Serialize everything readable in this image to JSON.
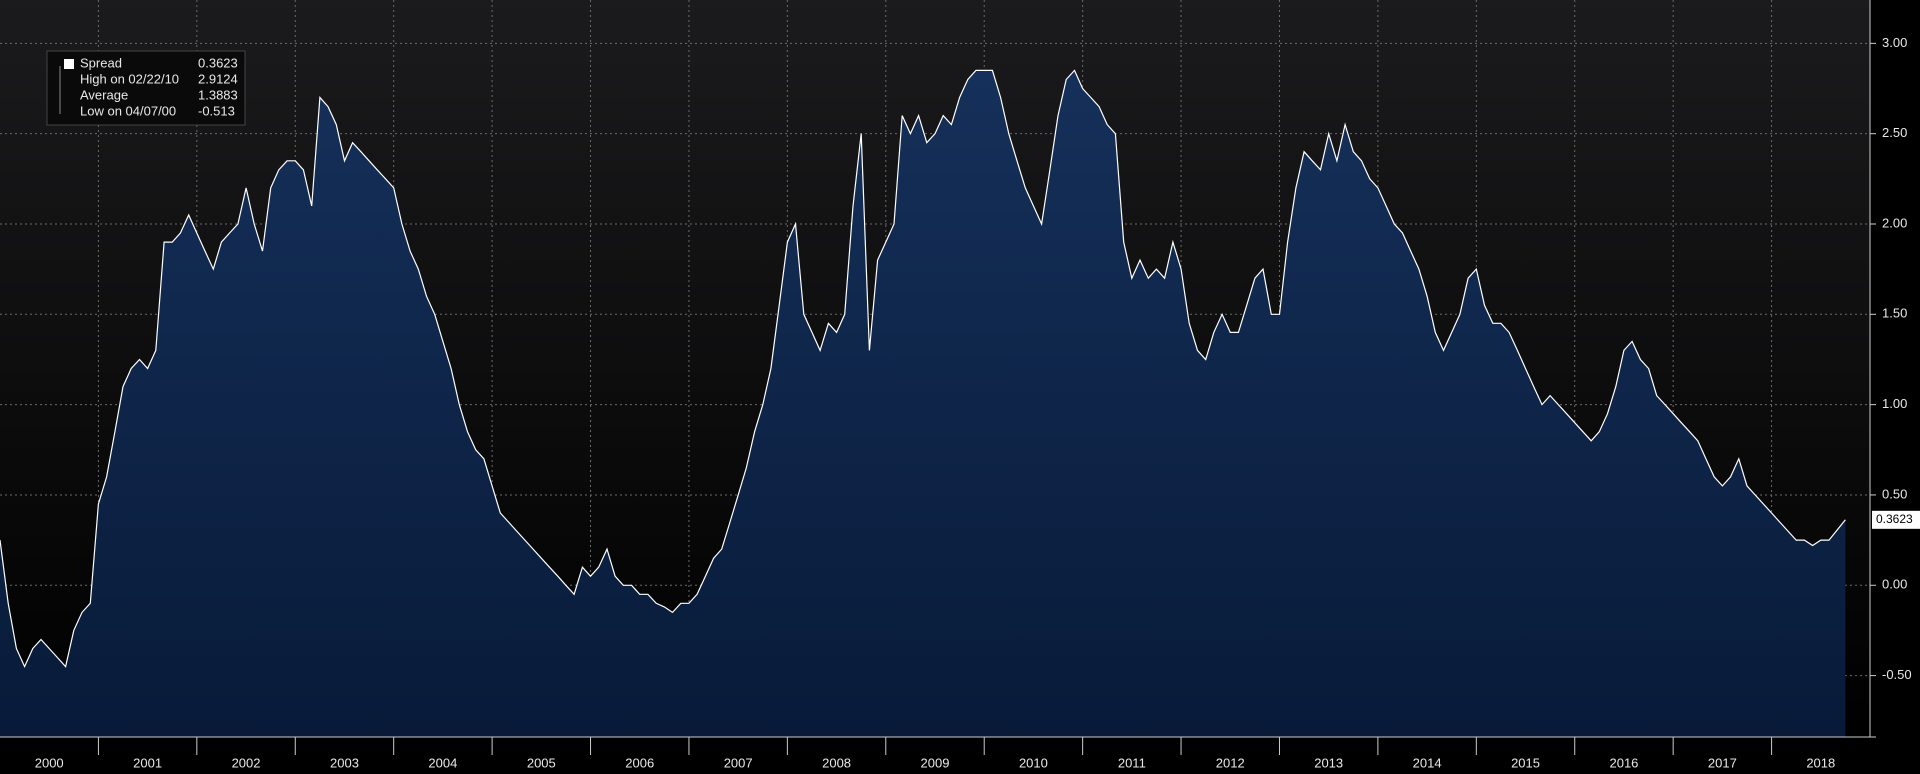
{
  "chart_data": {
    "type": "area",
    "x": [
      2000,
      2000.083,
      2000.167,
      2000.25,
      2000.333,
      2000.417,
      2000.5,
      2000.583,
      2000.667,
      2000.75,
      2000.833,
      2000.917,
      2001,
      2001.083,
      2001.167,
      2001.25,
      2001.333,
      2001.417,
      2001.5,
      2001.583,
      2001.667,
      2001.75,
      2001.833,
      2001.917,
      2002,
      2002.083,
      2002.167,
      2002.25,
      2002.333,
      2002.417,
      2002.5,
      2002.583,
      2002.667,
      2002.75,
      2002.833,
      2002.917,
      2003,
      2003.083,
      2003.167,
      2003.25,
      2003.333,
      2003.417,
      2003.5,
      2003.583,
      2003.667,
      2003.75,
      2003.833,
      2003.917,
      2004,
      2004.083,
      2004.167,
      2004.25,
      2004.333,
      2004.417,
      2004.5,
      2004.583,
      2004.667,
      2004.75,
      2004.833,
      2004.917,
      2005,
      2005.083,
      2005.167,
      2005.25,
      2005.333,
      2005.417,
      2005.5,
      2005.583,
      2005.667,
      2005.75,
      2005.833,
      2005.917,
      2006,
      2006.083,
      2006.167,
      2006.25,
      2006.333,
      2006.417,
      2006.5,
      2006.583,
      2006.667,
      2006.75,
      2006.833,
      2006.917,
      2007,
      2007.083,
      2007.167,
      2007.25,
      2007.333,
      2007.417,
      2007.5,
      2007.583,
      2007.667,
      2007.75,
      2007.833,
      2007.917,
      2008,
      2008.083,
      2008.167,
      2008.25,
      2008.333,
      2008.417,
      2008.5,
      2008.583,
      2008.667,
      2008.75,
      2008.833,
      2008.917,
      2009,
      2009.083,
      2009.167,
      2009.25,
      2009.333,
      2009.417,
      2009.5,
      2009.583,
      2009.667,
      2009.75,
      2009.833,
      2009.917,
      2010,
      2010.083,
      2010.167,
      2010.25,
      2010.333,
      2010.417,
      2010.5,
      2010.583,
      2010.667,
      2010.75,
      2010.833,
      2010.917,
      2011,
      2011.083,
      2011.167,
      2011.25,
      2011.333,
      2011.417,
      2011.5,
      2011.583,
      2011.667,
      2011.75,
      2011.833,
      2011.917,
      2012,
      2012.083,
      2012.167,
      2012.25,
      2012.333,
      2012.417,
      2012.5,
      2012.583,
      2012.667,
      2012.75,
      2012.833,
      2012.917,
      2013,
      2013.083,
      2013.167,
      2013.25,
      2013.333,
      2013.417,
      2013.5,
      2013.583,
      2013.667,
      2013.75,
      2013.833,
      2013.917,
      2014,
      2014.083,
      2014.167,
      2014.25,
      2014.333,
      2014.417,
      2014.5,
      2014.583,
      2014.667,
      2014.75,
      2014.833,
      2014.917,
      2015,
      2015.083,
      2015.167,
      2015.25,
      2015.333,
      2015.417,
      2015.5,
      2015.583,
      2015.667,
      2015.75,
      2015.833,
      2015.917,
      2016,
      2016.083,
      2016.167,
      2016.25,
      2016.333,
      2016.417,
      2016.5,
      2016.583,
      2016.667,
      2016.75,
      2016.833,
      2016.917,
      2017,
      2017.083,
      2017.167,
      2017.25,
      2017.333,
      2017.417,
      2017.5,
      2017.583,
      2017.667,
      2017.75,
      2017.833,
      2017.917,
      2018,
      2018.083,
      2018.167,
      2018.25,
      2018.333,
      2018.417,
      2018.5,
      2018.583,
      2018.75
    ],
    "series": [
      {
        "name": "Spread",
        "color": "#ffffff",
        "fill": "#13294b",
        "values": [
          0.25,
          -0.1,
          -0.35,
          -0.45,
          -0.35,
          -0.3,
          -0.35,
          -0.4,
          -0.45,
          -0.25,
          -0.15,
          -0.1,
          0.45,
          0.6,
          0.85,
          1.1,
          1.2,
          1.25,
          1.2,
          1.3,
          1.9,
          1.9,
          1.95,
          2.05,
          1.95,
          1.85,
          1.75,
          1.9,
          1.95,
          2.0,
          2.2,
          2.0,
          1.85,
          2.2,
          2.3,
          2.35,
          2.35,
          2.3,
          2.1,
          2.7,
          2.65,
          2.55,
          2.35,
          2.45,
          2.4,
          2.35,
          2.3,
          2.25,
          2.2,
          2.0,
          1.85,
          1.75,
          1.6,
          1.5,
          1.35,
          1.2,
          1.0,
          0.85,
          0.75,
          0.7,
          0.55,
          0.4,
          0.35,
          0.3,
          0.25,
          0.2,
          0.15,
          0.1,
          0.05,
          0.0,
          -0.05,
          0.1,
          0.05,
          0.1,
          0.2,
          0.05,
          0.0,
          0.0,
          -0.05,
          -0.05,
          -0.1,
          -0.12,
          -0.15,
          -0.1,
          -0.1,
          -0.05,
          0.05,
          0.15,
          0.2,
          0.35,
          0.5,
          0.65,
          0.85,
          1.0,
          1.2,
          1.55,
          1.9,
          2.0,
          1.5,
          1.4,
          1.3,
          1.45,
          1.4,
          1.5,
          2.1,
          2.5,
          1.3,
          1.8,
          1.9,
          2.0,
          2.6,
          2.5,
          2.6,
          2.45,
          2.5,
          2.6,
          2.55,
          2.7,
          2.8,
          2.85,
          2.85,
          2.85,
          2.7,
          2.5,
          2.35,
          2.2,
          2.1,
          2.0,
          2.3,
          2.6,
          2.8,
          2.85,
          2.75,
          2.7,
          2.65,
          2.55,
          2.5,
          1.9,
          1.7,
          1.8,
          1.7,
          1.75,
          1.7,
          1.9,
          1.75,
          1.45,
          1.3,
          1.25,
          1.4,
          1.5,
          1.4,
          1.4,
          1.55,
          1.7,
          1.75,
          1.5,
          1.5,
          1.9,
          2.2,
          2.4,
          2.35,
          2.3,
          2.5,
          2.35,
          2.55,
          2.4,
          2.35,
          2.25,
          2.2,
          2.1,
          2.0,
          1.95,
          1.85,
          1.75,
          1.6,
          1.4,
          1.3,
          1.4,
          1.5,
          1.7,
          1.75,
          1.55,
          1.45,
          1.45,
          1.4,
          1.3,
          1.2,
          1.1,
          1.0,
          1.05,
          1.0,
          0.95,
          0.9,
          0.85,
          0.8,
          0.85,
          0.95,
          1.1,
          1.3,
          1.35,
          1.25,
          1.2,
          1.05,
          1.0,
          0.95,
          0.9,
          0.85,
          0.8,
          0.7,
          0.6,
          0.55,
          0.6,
          0.7,
          0.55,
          0.5,
          0.45,
          0.4,
          0.35,
          0.3,
          0.25,
          0.25,
          0.22,
          0.25,
          0.25,
          0.3623
        ]
      }
    ],
    "legend_items": [
      {
        "label": "Spread",
        "value": 0.3623
      },
      {
        "label": "High on 02/22/10",
        "value": 2.9124
      },
      {
        "label": "Average",
        "value": 1.3883
      },
      {
        "label": "Low on 04/07/00",
        "value": -0.513
      }
    ],
    "xlim": [
      2000,
      2019
    ],
    "xticks": [
      {
        "value": 2000.5,
        "label": "2000"
      },
      {
        "value": 2001.5,
        "label": "2001"
      },
      {
        "value": 2002.5,
        "label": "2002"
      },
      {
        "value": 2003.5,
        "label": "2003"
      },
      {
        "value": 2004.5,
        "label": "2004"
      },
      {
        "value": 2005.5,
        "label": "2005"
      },
      {
        "value": 2006.5,
        "label": "2006"
      },
      {
        "value": 2007.5,
        "label": "2007"
      },
      {
        "value": 2008.5,
        "label": "2008"
      },
      {
        "value": 2009.5,
        "label": "2009"
      },
      {
        "value": 2010.5,
        "label": "2010"
      },
      {
        "value": 2011.5,
        "label": "2011"
      },
      {
        "value": 2012.5,
        "label": "2012"
      },
      {
        "value": 2013.5,
        "label": "2013"
      },
      {
        "value": 2014.5,
        "label": "2014"
      },
      {
        "value": 2015.5,
        "label": "2015"
      },
      {
        "value": 2016.5,
        "label": "2016"
      },
      {
        "value": 2017.5,
        "label": "2017"
      },
      {
        "value": 2018.5,
        "label": "2018"
      }
    ],
    "ylim": [
      -0.84,
      3.24
    ],
    "yticks": [
      {
        "value": -0.5,
        "label": "-0.50"
      },
      {
        "value": 0,
        "label": "0.00"
      },
      {
        "value": 0.5,
        "label": "0.50"
      },
      {
        "value": 1,
        "label": "1.00"
      },
      {
        "value": 1.5,
        "label": "1.50"
      },
      {
        "value": 2,
        "label": "2.00"
      },
      {
        "value": 2.5,
        "label": "2.50"
      },
      {
        "value": 3,
        "label": "3.00"
      }
    ],
    "grid": true
  }
}
